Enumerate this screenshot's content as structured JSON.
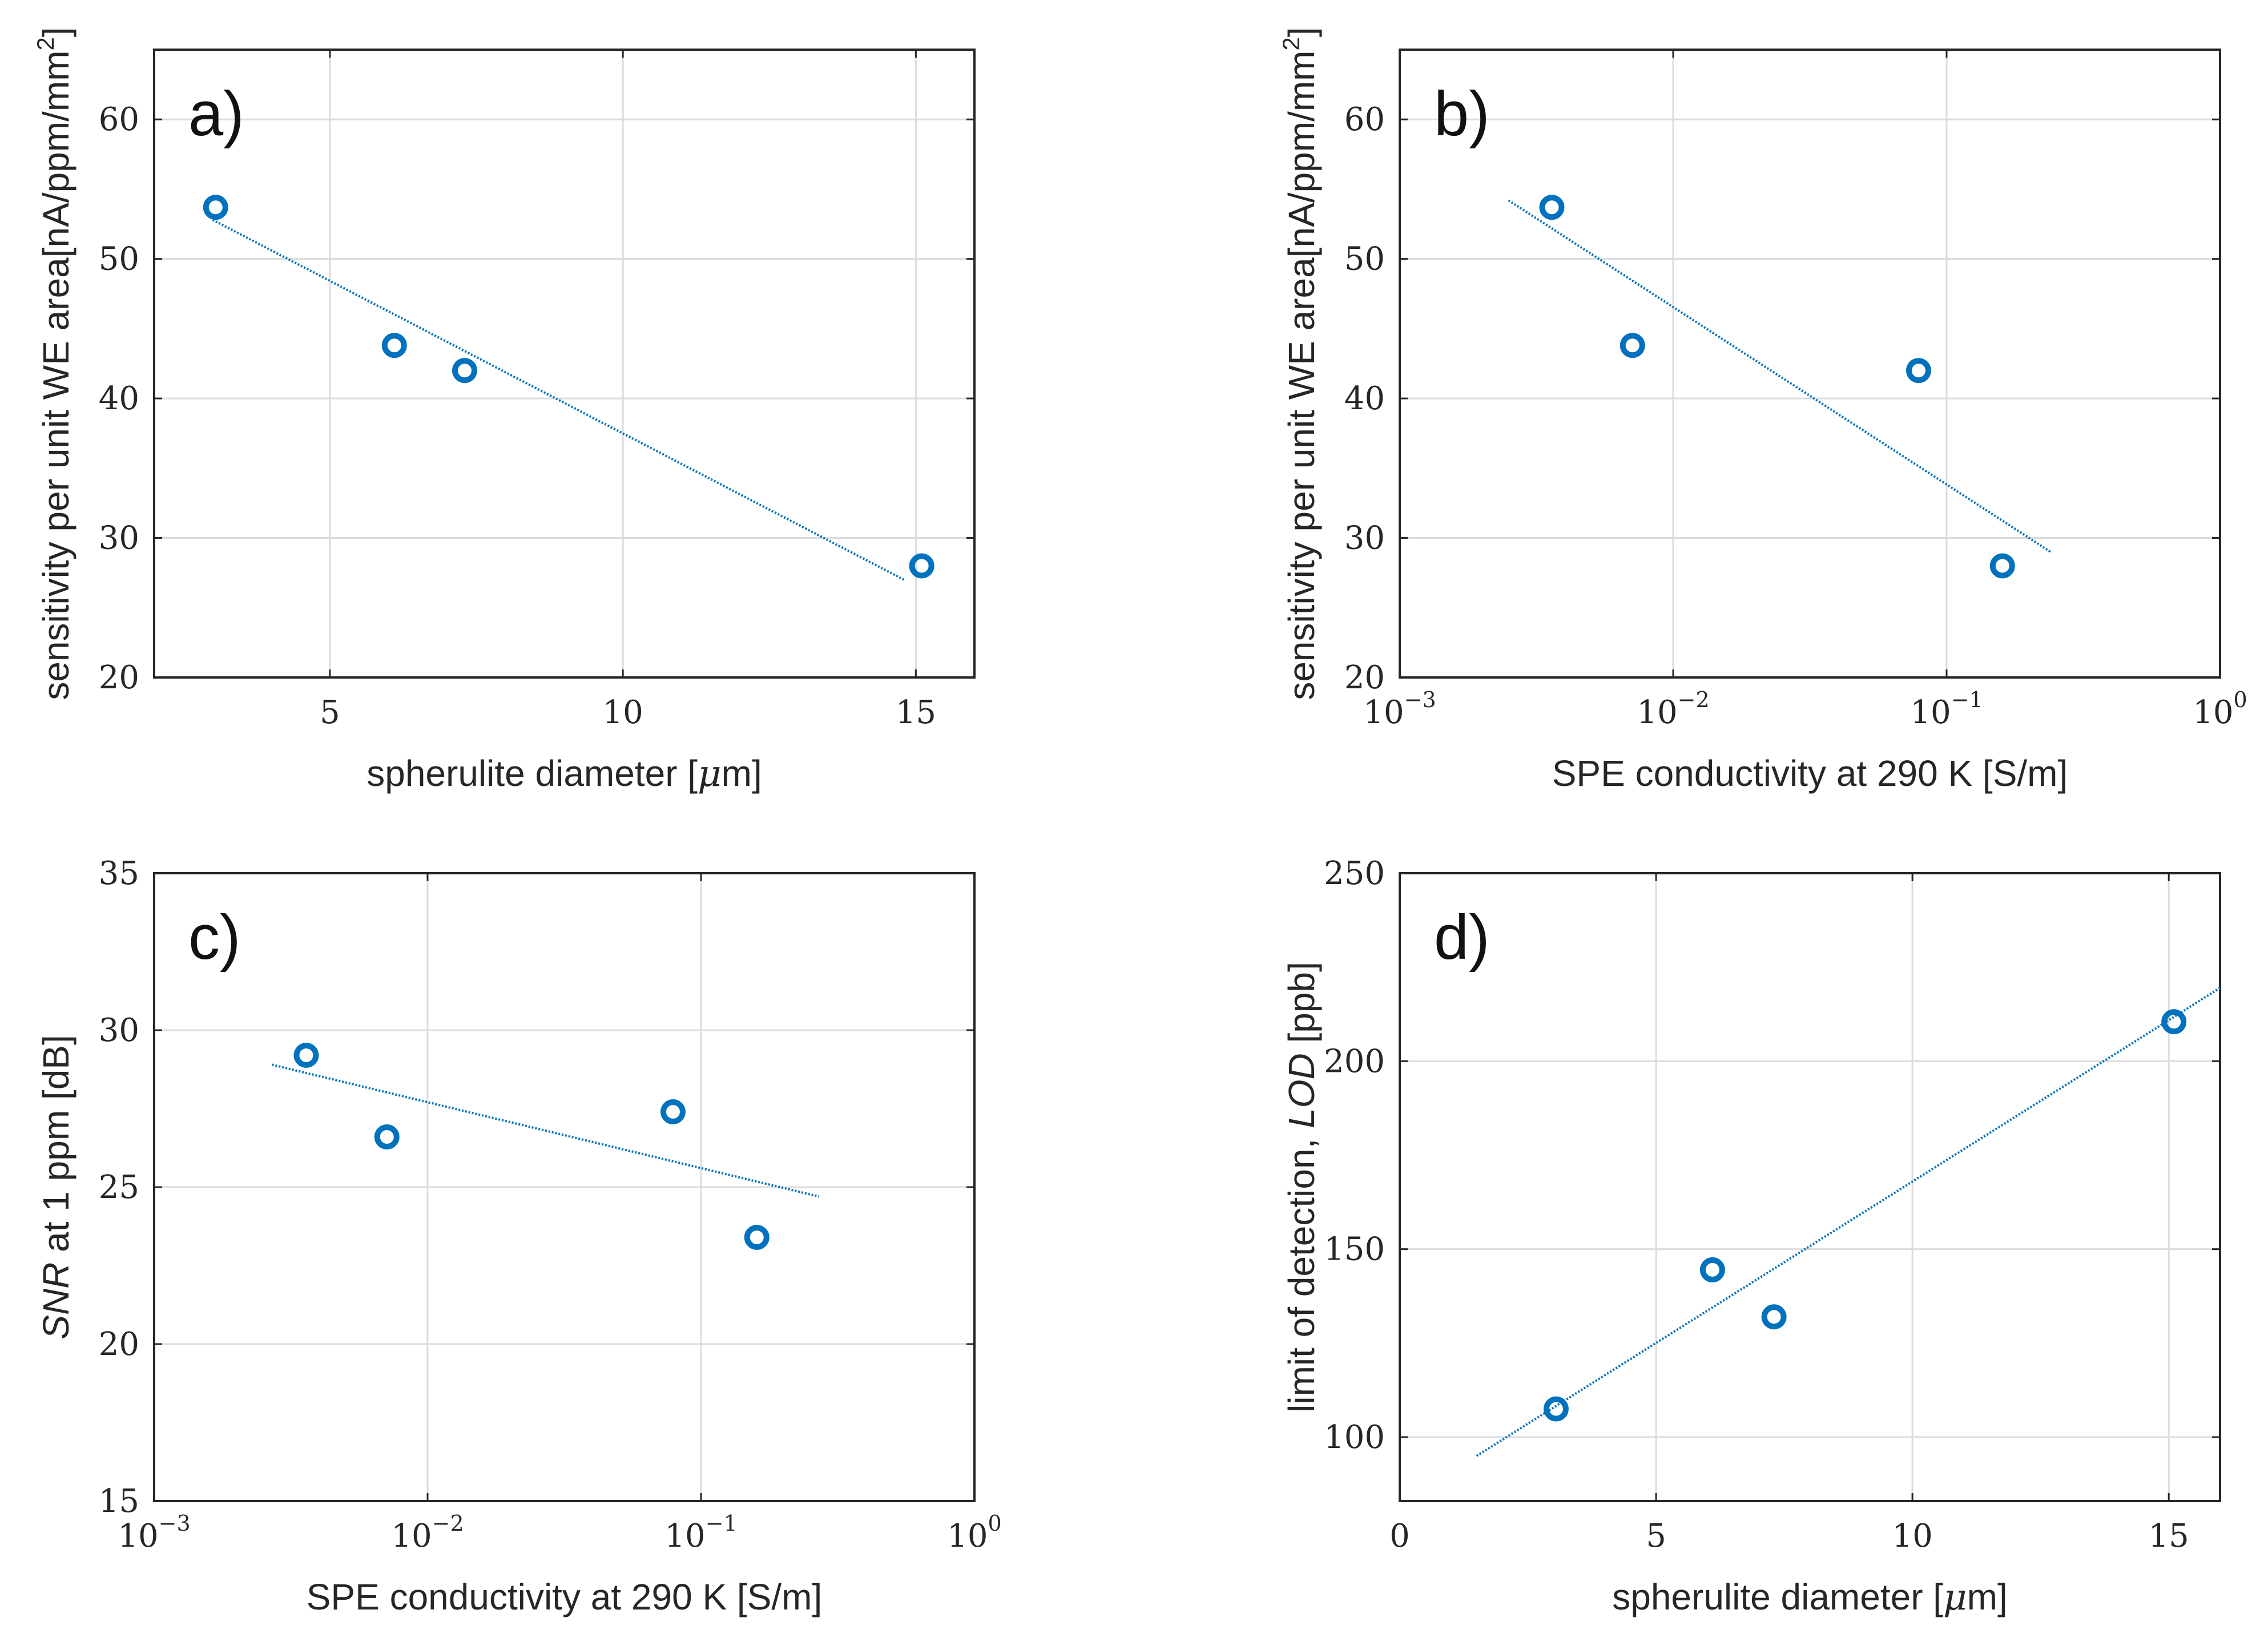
{
  "colors": {
    "series": "#0072BD",
    "axis": "#262626",
    "grid": "#dcdcdc"
  },
  "chart_data": [
    {
      "id": "a",
      "type": "scatter",
      "panel_label": "a)",
      "xscale": "linear",
      "xlim": [
        2,
        16
      ],
      "ylim": [
        20,
        65
      ],
      "xticks": [
        5,
        10,
        15
      ],
      "yticks": [
        20,
        30,
        40,
        50,
        60
      ],
      "xlabel_parts": [
        "spherulite diameter [",
        "μ",
        "m]"
      ],
      "ylabel_parts": [
        "sensitivity per unit WE area[nA/ppm/mm",
        "2",
        "]"
      ],
      "points": [
        [
          3.05,
          53.7
        ],
        [
          6.1,
          43.8
        ],
        [
          7.3,
          42.0
        ],
        [
          15.1,
          28.0
        ]
      ],
      "fit": [
        [
          3.0,
          52.8
        ],
        [
          14.8,
          27.0
        ]
      ]
    },
    {
      "id": "b",
      "type": "scatter",
      "panel_label": "b)",
      "xscale": "log",
      "xlim": [
        0.001,
        1
      ],
      "ylim": [
        20,
        65
      ],
      "xticks": [
        0.001,
        0.01,
        0.1,
        1
      ],
      "xtick_exponents": [
        "−3",
        "−2",
        "−1",
        "0"
      ],
      "yticks": [
        20,
        30,
        40,
        50,
        60
      ],
      "xlabel_parts": [
        "SPE conductivity at 290 K [S/m]"
      ],
      "ylabel_parts": [
        "sensitivity per unit WE area[nA/ppm/mm",
        "2",
        "]"
      ],
      "points": [
        [
          0.0036,
          53.7
        ],
        [
          0.0071,
          43.8
        ],
        [
          0.079,
          42.0
        ],
        [
          0.16,
          28.0
        ]
      ],
      "fit": [
        [
          0.0025,
          54.2
        ],
        [
          0.24,
          29.0
        ]
      ]
    },
    {
      "id": "c",
      "type": "scatter",
      "panel_label": "c)",
      "xscale": "log",
      "xlim": [
        0.001,
        1
      ],
      "ylim": [
        15,
        35
      ],
      "xticks": [
        0.001,
        0.01,
        0.1,
        1
      ],
      "xtick_exponents": [
        "−3",
        "−2",
        "−1",
        "0"
      ],
      "yticks": [
        15,
        20,
        25,
        30,
        35
      ],
      "xlabel_parts": [
        "SPE conductivity at 290 K [S/m]"
      ],
      "ylabel_style": "snr",
      "ylabel_parts": [
        "SNR",
        " at 1 ppm [dB]"
      ],
      "points": [
        [
          0.0036,
          29.2
        ],
        [
          0.0071,
          26.6
        ],
        [
          0.079,
          27.4
        ],
        [
          0.16,
          23.4
        ]
      ],
      "fit": [
        [
          0.0027,
          28.9
        ],
        [
          0.27,
          24.7
        ]
      ]
    },
    {
      "id": "d",
      "type": "scatter",
      "panel_label": "d)",
      "xscale": "linear",
      "xlim": [
        0,
        16
      ],
      "ylim": [
        83,
        250
      ],
      "xticks": [
        0,
        5,
        10,
        15
      ],
      "yticks": [
        100,
        150,
        200,
        250
      ],
      "xlabel_parts": [
        "spherulite diameter [",
        "μ",
        "m]"
      ],
      "ylabel_style": "lod",
      "ylabel_parts": [
        "limit of detection, ",
        "LOD",
        " [ppb]"
      ],
      "points": [
        [
          3.05,
          107.5
        ],
        [
          6.1,
          144.5
        ],
        [
          7.3,
          132.0
        ],
        [
          15.1,
          210.5
        ]
      ],
      "fit": [
        [
          1.5,
          95.0
        ],
        [
          16.0,
          219.5
        ]
      ]
    }
  ]
}
